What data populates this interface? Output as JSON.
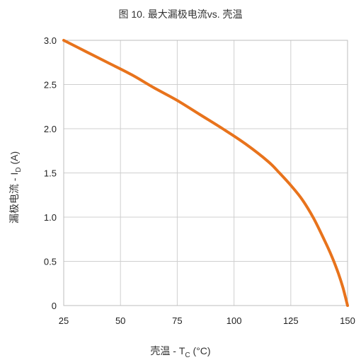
{
  "chart_data": {
    "type": "line",
    "title": "图 10. 最大漏极电流vs. 壳温",
    "ylabel": {
      "main": "漏极电流 - I",
      "sub": "D",
      "unit": " (A)"
    },
    "xlabel": {
      "main": "壳温 -  T",
      "sub": "C",
      "unit": " (°C)"
    },
    "xlim": [
      25,
      150
    ],
    "ylim": [
      0,
      3.0
    ],
    "x_ticks": [
      25,
      50,
      75,
      100,
      125,
      150
    ],
    "x_tick_labels": [
      "25",
      "50",
      "75",
      "100",
      "125",
      "150"
    ],
    "y_ticks": [
      0,
      0.5,
      1.0,
      1.5,
      2.0,
      2.5,
      3.0
    ],
    "y_tick_labels": [
      "0",
      "0.5",
      "1.0",
      "1.5",
      "2.0",
      "2.5",
      "3.0"
    ],
    "grid": true,
    "series": [
      {
        "color": "#e8731c",
        "x": [
          25,
          35,
          45,
          55,
          65,
          75,
          85,
          95,
          105,
          115,
          120,
          125,
          130,
          135,
          140,
          143,
          146,
          148,
          150
        ],
        "y": [
          3.0,
          2.87,
          2.74,
          2.61,
          2.46,
          2.32,
          2.16,
          2.0,
          1.83,
          1.63,
          1.5,
          1.36,
          1.2,
          0.99,
          0.73,
          0.56,
          0.36,
          0.2,
          0.0
        ]
      }
    ]
  }
}
